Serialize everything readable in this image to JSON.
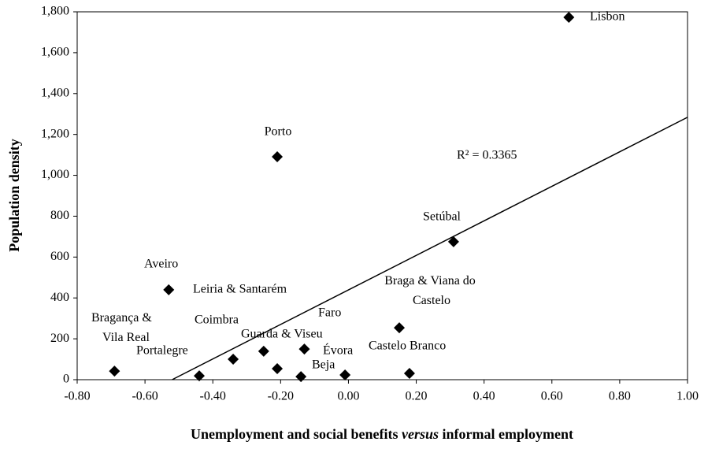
{
  "chart_data": {
    "type": "scatter",
    "xlabel": "Unemployment and social benefits versus informal employment",
    "ylabel": "Population density",
    "xlim": [
      -0.8,
      1.0
    ],
    "xticks": [
      {
        "value": -0.8,
        "label": "-0.80"
      },
      {
        "value": -0.6,
        "label": "-0.60"
      },
      {
        "value": -0.4,
        "label": "-0.40"
      },
      {
        "value": -0.2,
        "label": "-0.20"
      },
      {
        "value": 0,
        "label": "0.00"
      },
      {
        "value": 0.2,
        "label": "0.20"
      },
      {
        "value": 0.4,
        "label": "0.40"
      },
      {
        "value": 0.6,
        "label": "0.60"
      },
      {
        "value": 0.8,
        "label": "0.80"
      },
      {
        "value": 1.0,
        "label": "1.00"
      }
    ],
    "ylim": [
      0,
      1800
    ],
    "yticks": [
      0,
      200,
      400,
      600,
      800,
      {
        "value": 1000,
        "label": "1,000"
      },
      {
        "value": 1200,
        "label": "1,200"
      },
      {
        "value": 1400,
        "label": "1,400"
      },
      {
        "value": 1600,
        "label": "1,600"
      },
      {
        "value": 1800,
        "label": "1,800"
      }
    ],
    "grid": false,
    "color": "#000000",
    "labels": [
      "Bragança & Vila Real",
      "Portalegre",
      "Coimbra",
      "Guarda & Viseu",
      "Leiria & Santarém",
      "Aveiro",
      "Beja",
      "Faro",
      "Évora",
      "Braga & Viana do Castelo",
      "Castelo Branco",
      "Setúbal",
      "Porto",
      "Lisbon"
    ],
    "x": [
      -0.69,
      -0.44,
      -0.34,
      -0.25,
      -0.53,
      -0.21,
      -0.14,
      -0.13,
      -0.01,
      0.15,
      0.18,
      0.31,
      -0.21,
      0.65
    ],
    "values": [
      42,
      19,
      100,
      139,
      440,
      54,
      15,
      150,
      23,
      254,
      31,
      675,
      1091,
      1773
    ],
    "trendline": {
      "x": [
        -0.52,
        1.0
      ],
      "y": [
        0,
        1284
      ]
    },
    "annotation": "R² = 0.3365"
  }
}
